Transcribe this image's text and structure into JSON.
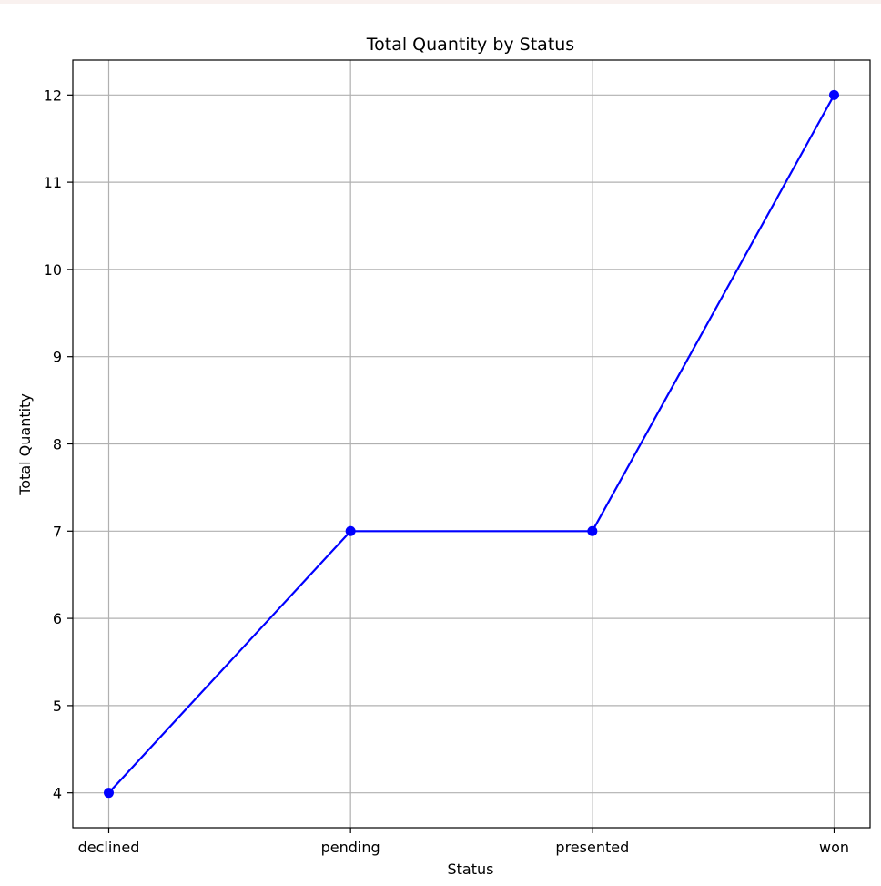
{
  "colors": {
    "line": "#0000ff",
    "marker": "#0000ff",
    "grid": "#b0b0b0",
    "axes": "#000000",
    "background": "#ffffff"
  },
  "chart_data": {
    "type": "line",
    "title": "Total Quantity by Status",
    "xlabel": "Status",
    "ylabel": "Total Quantity",
    "categories": [
      "declined",
      "pending",
      "presented",
      "won"
    ],
    "values": [
      4,
      7,
      7,
      12
    ],
    "ylim": [
      3.6,
      12.4
    ],
    "yticks": [
      4,
      5,
      6,
      7,
      8,
      9,
      10,
      11,
      12
    ],
    "grid": true,
    "marker": "circle"
  }
}
